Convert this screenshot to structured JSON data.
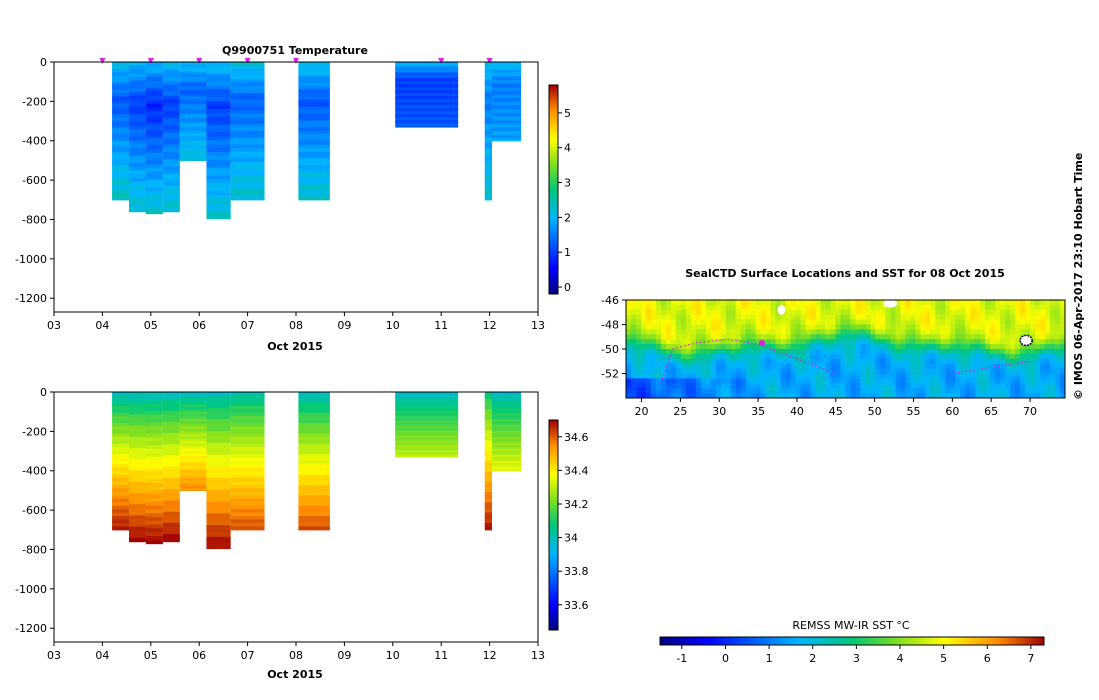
{
  "chart_data": [
    {
      "type": "heatmap",
      "title": "Q9900751  Temperature",
      "xlabel": "Oct 2015",
      "x_ticks": [
        "03",
        "04",
        "05",
        "06",
        "07",
        "08",
        "09",
        "10",
        "11",
        "12",
        "13"
      ],
      "y_ticks": [
        "0",
        "-200",
        "-400",
        "-600",
        "-800",
        "-1000",
        "-1200"
      ],
      "ylim": [
        -1270,
        0
      ],
      "xlim": [
        3,
        13
      ],
      "colorbar_ticks": [
        "0",
        "1",
        "2",
        "3",
        "4",
        "5"
      ],
      "colorbar_range": [
        -0.2,
        5.8
      ],
      "profiles": [
        {
          "x0": 4.2,
          "x1": 4.55,
          "depth": 700,
          "surface": 2.1,
          "min": 1.2,
          "deep": 2.4
        },
        {
          "x0": 4.55,
          "x1": 4.9,
          "depth": 760,
          "surface": 2.0,
          "min": 1.0,
          "deep": 2.3
        },
        {
          "x0": 4.9,
          "x1": 5.25,
          "depth": 770,
          "surface": 2.0,
          "min": 0.8,
          "deep": 2.3
        },
        {
          "x0": 5.25,
          "x1": 5.6,
          "depth": 760,
          "surface": 2.1,
          "min": 1.0,
          "deep": 2.3
        },
        {
          "x0": 5.6,
          "x1": 6.15,
          "depth": 500,
          "surface": 2.1,
          "min": 1.3,
          "deep": 2.2
        },
        {
          "x0": 6.15,
          "x1": 6.65,
          "depth": 795,
          "surface": 2.1,
          "min": 1.0,
          "deep": 2.3
        },
        {
          "x0": 6.65,
          "x1": 7.35,
          "depth": 700,
          "surface": 2.2,
          "min": 1.3,
          "deep": 2.3
        },
        {
          "x0": 8.05,
          "x1": 8.7,
          "depth": 700,
          "surface": 2.2,
          "min": 1.2,
          "deep": 2.3
        },
        {
          "x0": 10.05,
          "x1": 11.35,
          "depth": 330,
          "surface": 2.0,
          "min": 1.0,
          "deep": 1.2
        },
        {
          "x0": 11.9,
          "x1": 12.05,
          "depth": 700,
          "surface": 2.1,
          "min": 1.5,
          "deep": 2.3
        },
        {
          "x0": 12.05,
          "x1": 12.65,
          "depth": 400,
          "surface": 2.1,
          "min": 1.5,
          "deep": 1.8
        }
      ],
      "surfacing_markers": [
        4,
        5,
        6,
        7,
        8,
        11,
        12
      ]
    },
    {
      "type": "heatmap",
      "title": "",
      "xlabel": "Oct 2015",
      "x_ticks": [
        "03",
        "04",
        "05",
        "06",
        "07",
        "08",
        "09",
        "10",
        "11",
        "12",
        "13"
      ],
      "y_ticks": [
        "0",
        "-200",
        "-400",
        "-600",
        "-800",
        "-1000",
        "-1200"
      ],
      "ylim": [
        -1270,
        0
      ],
      "xlim": [
        3,
        13
      ],
      "colorbar_ticks": [
        "33.6",
        "33.8",
        "34",
        "34.2",
        "34.4",
        "34.6"
      ],
      "colorbar_range": [
        33.45,
        34.7
      ],
      "profiles": [
        {
          "x0": 4.2,
          "x1": 4.55,
          "depth": 700,
          "surface": 33.95,
          "deep": 34.68
        },
        {
          "x0": 4.55,
          "x1": 4.9,
          "depth": 760,
          "surface": 33.95,
          "deep": 34.7
        },
        {
          "x0": 4.9,
          "x1": 5.25,
          "depth": 770,
          "surface": 33.95,
          "deep": 34.7
        },
        {
          "x0": 5.25,
          "x1": 5.6,
          "depth": 760,
          "surface": 33.95,
          "deep": 34.7
        },
        {
          "x0": 5.6,
          "x1": 6.15,
          "depth": 500,
          "surface": 33.95,
          "deep": 34.55
        },
        {
          "x0": 6.15,
          "x1": 6.65,
          "depth": 795,
          "surface": 33.95,
          "deep": 34.7
        },
        {
          "x0": 6.65,
          "x1": 7.35,
          "depth": 700,
          "surface": 33.98,
          "deep": 34.62
        },
        {
          "x0": 8.05,
          "x1": 8.7,
          "depth": 700,
          "surface": 33.95,
          "deep": 34.62
        },
        {
          "x0": 10.05,
          "x1": 11.35,
          "depth": 330,
          "surface": 33.95,
          "deep": 34.3
        },
        {
          "x0": 11.9,
          "x1": 12.05,
          "depth": 700,
          "surface": 34.05,
          "deep": 34.68
        },
        {
          "x0": 12.05,
          "x1": 12.65,
          "depth": 400,
          "surface": 33.95,
          "deep": 34.35
        }
      ]
    },
    {
      "type": "heatmap",
      "title": "SealCTD Surface Locations and SST for 08 Oct 2015",
      "x_ticks": [
        "20",
        "25",
        "30",
        "35",
        "40",
        "45",
        "50",
        "55",
        "60",
        "65",
        "70"
      ],
      "y_ticks": [
        "-46",
        "-48",
        "-50",
        "-52"
      ],
      "xlim": [
        18,
        74.5
      ],
      "ylim": [
        -54,
        -46
      ],
      "colorbar_label": "REMSS MW-IR SST °C",
      "colorbar_ticks": [
        "-1",
        "0",
        "1",
        "2",
        "3",
        "4",
        "5",
        "6",
        "7"
      ],
      "colorbar_range": [
        -1.5,
        7.3
      ]
    }
  ],
  "watermark": "© IMOS 06-Apr-2017 23:10 Hobart Time"
}
